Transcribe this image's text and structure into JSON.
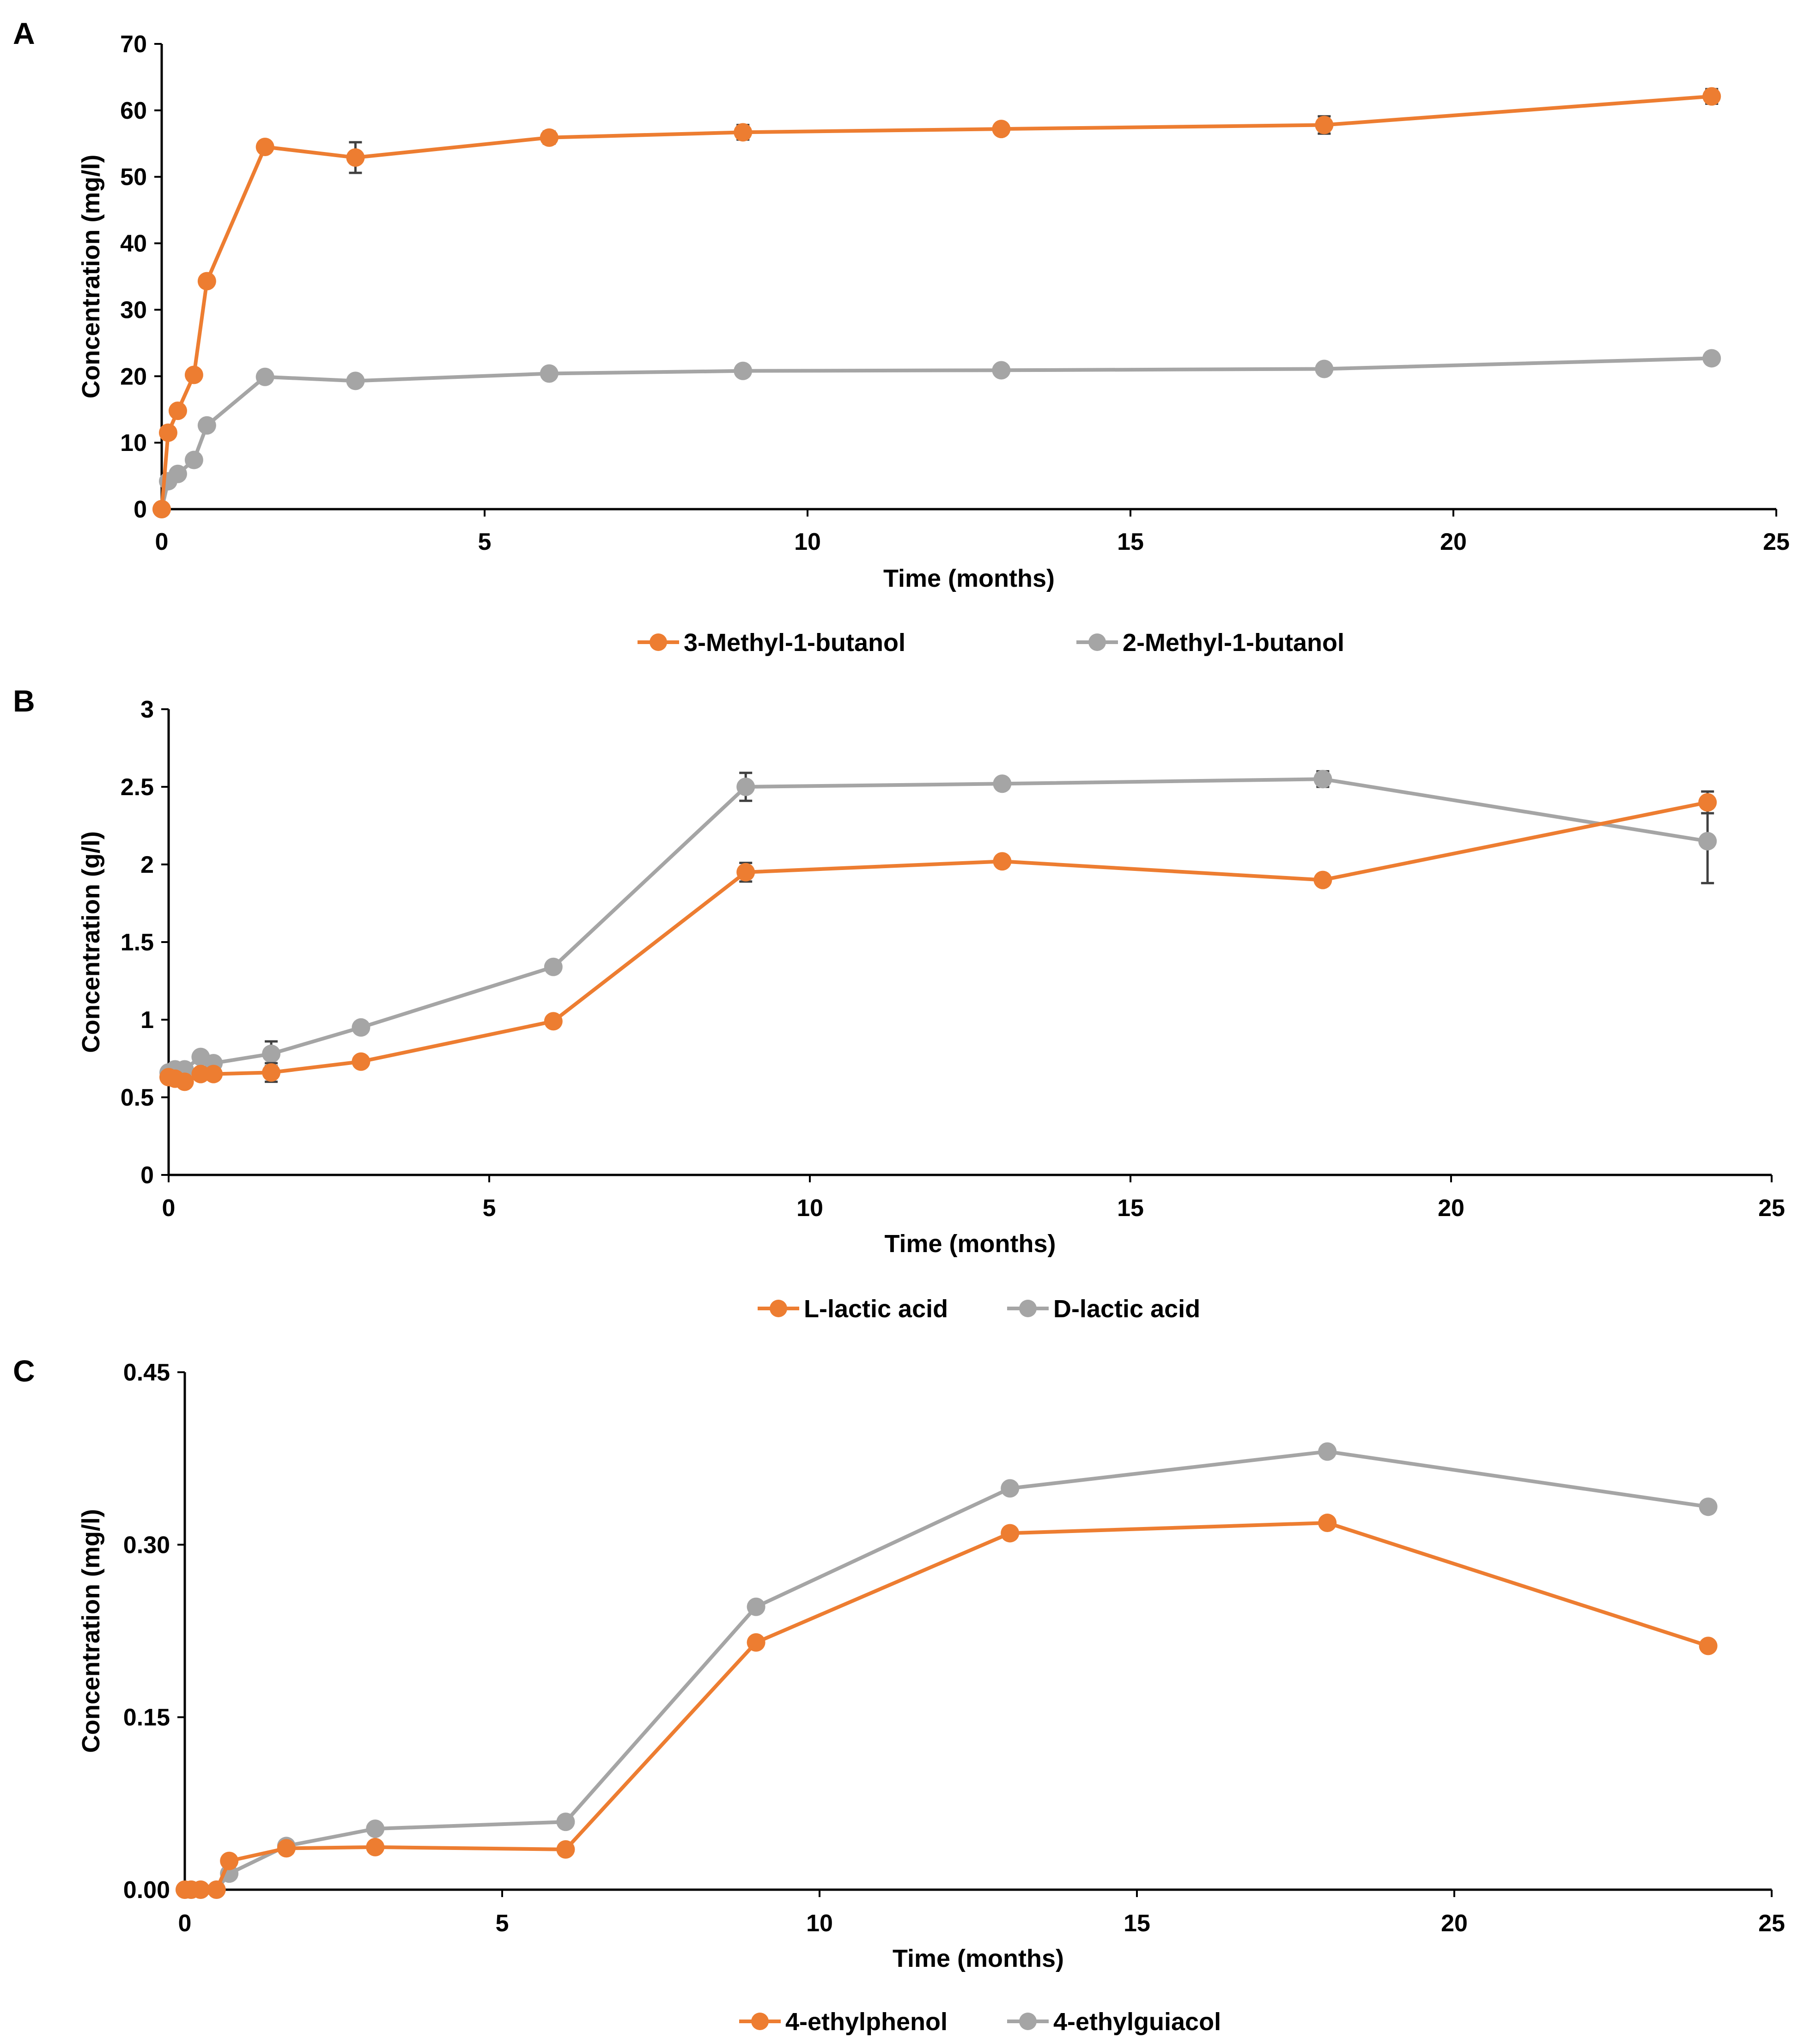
{
  "chart_data": [
    {
      "type": "line",
      "panel_label": "A",
      "title": "",
      "xlabel": "Time (months)",
      "ylabel": "Concentration (mg/l)",
      "xlim": [
        0,
        25
      ],
      "ylim": [
        0,
        70
      ],
      "x_ticks": [
        "0",
        "5",
        "10",
        "15",
        "20",
        "25"
      ],
      "y_ticks": [
        "0",
        "10",
        "20",
        "30",
        "40",
        "50",
        "60",
        "70"
      ],
      "grid": false,
      "legend_position": "bottom",
      "series": [
        {
          "name": "3-Methyl-1-butanol",
          "color": "#ED7D31",
          "x": [
            0,
            0.1,
            0.25,
            0.5,
            0.7,
            1.6,
            3,
            6,
            9,
            13,
            18,
            24
          ],
          "values": [
            0,
            11.5,
            14.8,
            20.2,
            34.3,
            54.5,
            52.9,
            55.9,
            56.7,
            57.2,
            57.8,
            62.1
          ],
          "errors": [
            0,
            0,
            0,
            0,
            0,
            0,
            2.3,
            0.9,
            1.1,
            0.5,
            1.3,
            1.1
          ]
        },
        {
          "name": "2-Methyl-1-butanol",
          "color": "#A5A5A5",
          "x": [
            0,
            0.1,
            0.25,
            0.5,
            0.7,
            1.6,
            3,
            6,
            9,
            13,
            18,
            24
          ],
          "values": [
            0,
            4.2,
            5.3,
            7.4,
            12.6,
            19.9,
            19.3,
            20.4,
            20.8,
            20.9,
            21.1,
            22.7
          ],
          "errors": [
            0,
            0,
            0,
            0,
            0,
            0,
            0,
            0,
            0,
            0,
            0,
            0
          ]
        }
      ]
    },
    {
      "type": "line",
      "panel_label": "B",
      "title": "",
      "xlabel": "Time (months)",
      "ylabel": "Concentration (g/l)",
      "xlim": [
        0,
        25
      ],
      "ylim": [
        0,
        3
      ],
      "x_ticks": [
        "0",
        "5",
        "10",
        "15",
        "20",
        "25"
      ],
      "y_ticks": [
        "0",
        "0.5",
        "1",
        "1.5",
        "2",
        "2.5",
        "3"
      ],
      "grid": false,
      "legend_position": "bottom",
      "series": [
        {
          "name": "L-lactic acid",
          "color": "#ED7D31",
          "x": [
            0,
            0.1,
            0.25,
            0.5,
            0.7,
            1.6,
            3,
            6,
            9,
            13,
            18,
            24
          ],
          "values": [
            0.63,
            0.62,
            0.6,
            0.65,
            0.65,
            0.66,
            0.73,
            0.99,
            1.95,
            2.02,
            1.9,
            2.4
          ],
          "errors": [
            0,
            0,
            0,
            0,
            0,
            0.06,
            0,
            0,
            0.06,
            0,
            0,
            0.07
          ]
        },
        {
          "name": "D-lactic acid",
          "color": "#A5A5A5",
          "x": [
            0,
            0.1,
            0.25,
            0.5,
            0.7,
            1.6,
            3,
            6,
            9,
            13,
            18,
            24
          ],
          "values": [
            0.66,
            0.68,
            0.68,
            0.76,
            0.72,
            0.78,
            0.95,
            1.34,
            2.5,
            2.52,
            2.55,
            2.15
          ],
          "errors": [
            0,
            0,
            0,
            0,
            0,
            0.08,
            0,
            0,
            0.09,
            0,
            0.05,
            0.27
          ]
        }
      ]
    },
    {
      "type": "line",
      "panel_label": "C",
      "title": "",
      "xlabel": "Time (months)",
      "ylabel": "Concentration (mg/l)",
      "xlim": [
        0,
        25
      ],
      "ylim": [
        0,
        0.45
      ],
      "x_ticks": [
        "0",
        "5",
        "10",
        "15",
        "20",
        "25"
      ],
      "y_ticks": [
        "0.00",
        "0.15",
        "0.30",
        "0.45"
      ],
      "grid": false,
      "legend_position": "bottom",
      "series": [
        {
          "name": "4-ethylphenol",
          "color": "#ED7D31",
          "x": [
            0,
            0.1,
            0.25,
            0.5,
            0.7,
            1.6,
            3,
            6,
            9,
            13,
            18,
            24
          ],
          "values": [
            0,
            0,
            0,
            0,
            0.025,
            0.036,
            0.037,
            0.035,
            0.215,
            0.31,
            0.319,
            0.212
          ],
          "errors": [
            0,
            0,
            0,
            0,
            0,
            0,
            0,
            0,
            0,
            0,
            0,
            0
          ]
        },
        {
          "name": "4-ethylguiacol",
          "color": "#A5A5A5",
          "x": [
            0,
            0.1,
            0.25,
            0.5,
            0.7,
            1.6,
            3,
            6,
            9,
            13,
            18,
            24
          ],
          "values": [
            0,
            0,
            0,
            0,
            0.014,
            0.038,
            0.053,
            0.059,
            0.246,
            0.349,
            0.381,
            0.333
          ],
          "errors": [
            0,
            0,
            0,
            0,
            0,
            0,
            0,
            0,
            0,
            0,
            0,
            0
          ]
        }
      ]
    }
  ]
}
